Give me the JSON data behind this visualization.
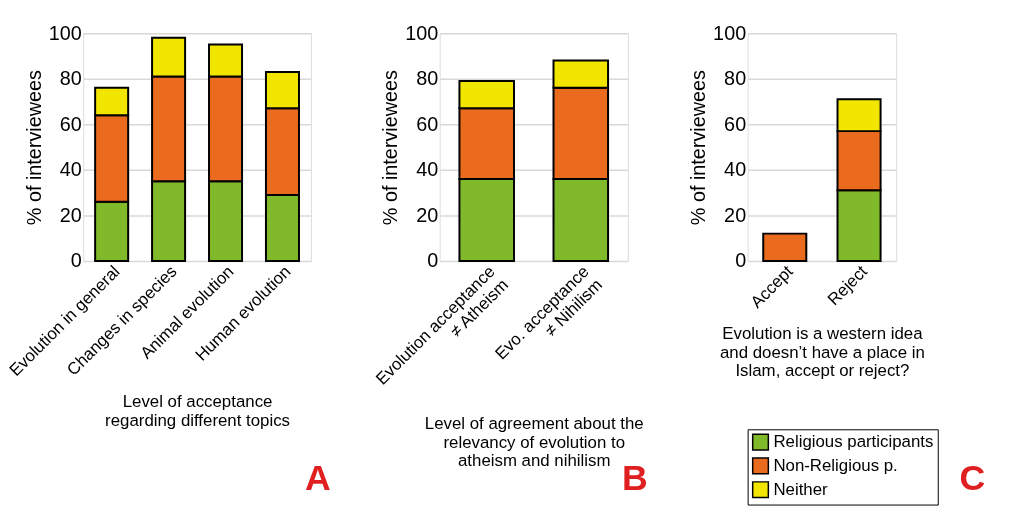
{
  "chart_data": [
    {
      "type": "bar",
      "stacked": true,
      "categories": [
        "Evolution in general",
        "Changes in species",
        "Animal evolution",
        "Human evolution"
      ],
      "xlabel": "Level of acceptance regarding different topics",
      "ylabel": "% of interviewees",
      "ylim": [
        0,
        100
      ],
      "yticks": [
        0,
        20,
        40,
        60,
        80,
        100
      ],
      "grid": "y",
      "legend": false,
      "annotations": [
        "A"
      ],
      "series": [
        {
          "color": "#80b92a",
          "values": [
            26,
            35,
            35,
            29
          ]
        },
        {
          "color": "#ea6a1e",
          "values": [
            38,
            46,
            46,
            38
          ]
        },
        {
          "color": "#f2e600",
          "values": [
            12,
            17,
            14,
            16
          ]
        }
      ]
    },
    {
      "type": "bar",
      "stacked": true,
      "categories": [
        "Evolution acceptance\n≠ Atheism",
        "Evo. acceptance\n≠ Nihilism"
      ],
      "xlabel": "Level of agreement about the relevancy of evolution to atheism and nihilism",
      "ylabel": "% of interviewees",
      "ylim": [
        0,
        100
      ],
      "yticks": [
        0,
        20,
        40,
        60,
        80,
        100
      ],
      "grid": "y",
      "legend": false,
      "annotations": [
        "B"
      ],
      "series": [
        {
          "color": "#80b92a",
          "values": [
            36,
            36
          ]
        },
        {
          "color": "#ea6a1e",
          "values": [
            31,
            40
          ]
        },
        {
          "color": "#f2e600",
          "values": [
            12,
            12
          ]
        }
      ]
    },
    {
      "type": "bar",
      "stacked": true,
      "categories": [
        "Accept",
        "Reject"
      ],
      "xlabel": "Evolution is a western idea and doesn’t have a place in Islam, accept or reject?",
      "ylabel": "% of interviewees",
      "ylim": [
        0,
        100
      ],
      "yticks": [
        0,
        20,
        40,
        60,
        80,
        100
      ],
      "grid": "y",
      "legend": "bottom",
      "annotations": [
        "C"
      ],
      "series": [
        {
          "name": "Religious participants",
          "color": "#80b92a",
          "values": [
            null,
            31
          ]
        },
        {
          "name": "Non-Religious p.",
          "color": "#ea6a1e",
          "values": [
            12,
            26
          ]
        },
        {
          "name": "Neither",
          "color": "#f2e600",
          "values": [
            null,
            14
          ]
        }
      ]
    }
  ]
}
